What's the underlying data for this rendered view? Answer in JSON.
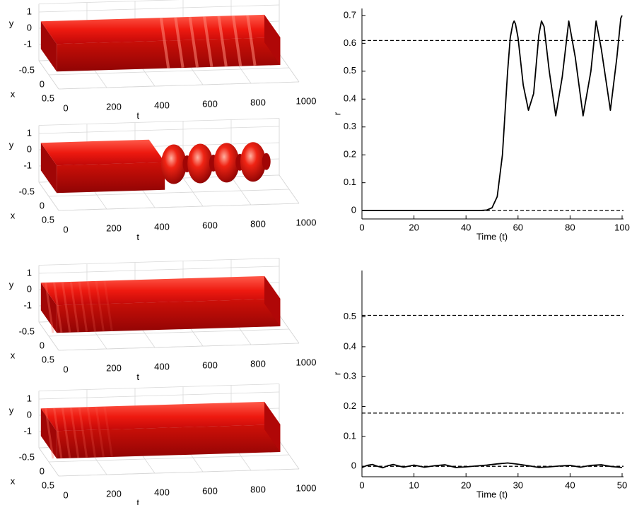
{
  "chart_data": [
    {
      "type": "surface3d",
      "xlabel": "t",
      "ylabel": "y",
      "zlabel": "x",
      "xlim": [
        0,
        1000
      ],
      "xticks": [
        0,
        200,
        400,
        600,
        800,
        1000
      ],
      "ylim": [
        -2,
        1.5
      ],
      "yticks": [
        -1,
        0,
        1
      ],
      "zlim": [
        -0.5,
        0.5
      ],
      "zticks": [
        -0.5,
        0,
        0.5
      ],
      "color": "#e01010"
    },
    {
      "type": "surface3d",
      "xlabel": "t",
      "ylabel": "y",
      "zlabel": "x",
      "xlim": [
        0,
        1000
      ],
      "xticks": [
        0,
        200,
        400,
        600,
        800,
        1000
      ],
      "ylim": [
        -2,
        1.5
      ],
      "yticks": [
        -1,
        0,
        1
      ],
      "zlim": [
        -0.5,
        0.5
      ],
      "zticks": [
        -0.5,
        0,
        0.5
      ],
      "color": "#e01010"
    },
    {
      "type": "surface3d",
      "xlabel": "t",
      "ylabel": "y",
      "zlabel": "x",
      "xlim": [
        0,
        1000
      ],
      "xticks": [
        0,
        200,
        400,
        600,
        800,
        1000
      ],
      "ylim": [
        -2,
        1.5
      ],
      "yticks": [
        -1,
        0,
        1
      ],
      "zlim": [
        -0.5,
        0.5
      ],
      "zticks": [
        -0.5,
        0,
        0.5
      ],
      "color": "#e01010"
    },
    {
      "type": "surface3d",
      "xlabel": "t",
      "ylabel": "y",
      "zlabel": "x",
      "xlim": [
        0,
        1000
      ],
      "xticks": [
        0,
        200,
        400,
        600,
        800,
        1000
      ],
      "ylim": [
        -2,
        1.5
      ],
      "yticks": [
        -1,
        0,
        1
      ],
      "zlim": [
        -0.5,
        0.5
      ],
      "zticks": [
        -0.5,
        0,
        0.5
      ],
      "color": "#e01010"
    },
    {
      "type": "line",
      "xlabel": "Time (t)",
      "ylabel": "r",
      "xlim": [
        0,
        100
      ],
      "xticks": [
        0,
        20,
        40,
        60,
        80,
        100
      ],
      "ylim": [
        -0.03,
        0.725
      ],
      "yticks": [
        0,
        0.1,
        0.2,
        0.3,
        0.4,
        0.5,
        0.6,
        0.7
      ],
      "reference_lines": [
        0.61,
        0
      ],
      "x": [
        0,
        10,
        20,
        30,
        40,
        45,
        48,
        50,
        52,
        54,
        55,
        56,
        57,
        58,
        58.5,
        59,
        60,
        62,
        64,
        66,
        68,
        69,
        70,
        72,
        74.5,
        77,
        79.5,
        82,
        85,
        88,
        90,
        92,
        95.5,
        98,
        99.5,
        100
      ],
      "series": [
        {
          "color": "#000000",
          "values": [
            0,
            0,
            0,
            0,
            0,
            0,
            0.002,
            0.01,
            0.05,
            0.2,
            0.35,
            0.5,
            0.62,
            0.67,
            0.68,
            0.67,
            0.62,
            0.45,
            0.36,
            0.42,
            0.63,
            0.68,
            0.66,
            0.5,
            0.34,
            0.48,
            0.68,
            0.55,
            0.34,
            0.5,
            0.68,
            0.58,
            0.36,
            0.55,
            0.69,
            0.7
          ]
        }
      ]
    },
    {
      "type": "line",
      "xlabel": "Time (t)",
      "ylabel": "r",
      "xlim": [
        0,
        50
      ],
      "xticks": [
        0,
        10,
        20,
        30,
        40,
        50
      ],
      "ylim": [
        -0.035,
        0.655
      ],
      "yticks": [
        0,
        0.1,
        0.2,
        0.3,
        0.4,
        0.5
      ],
      "reference_lines": [
        0.505,
        0.178,
        0
      ],
      "x": [
        0,
        1,
        2,
        3,
        4,
        5,
        6,
        8,
        10,
        12,
        14,
        16,
        18,
        20,
        22,
        24,
        26,
        28,
        30,
        32,
        34,
        36,
        38,
        40,
        42,
        44,
        46,
        48,
        50
      ],
      "series": [
        {
          "color": "#000000",
          "values": [
            -0.004,
            0.003,
            0.006,
            0,
            -0.005,
            0.002,
            0.006,
            -0.003,
            0.004,
            -0.003,
            0.002,
            0.005,
            -0.004,
            -0.002,
            0.001,
            0.004,
            0.008,
            0.011,
            0.007,
            0.002,
            -0.004,
            -0.002,
            0.001,
            0.003,
            -0.003,
            0.003,
            0.005,
            -0.001,
            -0.004
          ]
        }
      ]
    }
  ]
}
